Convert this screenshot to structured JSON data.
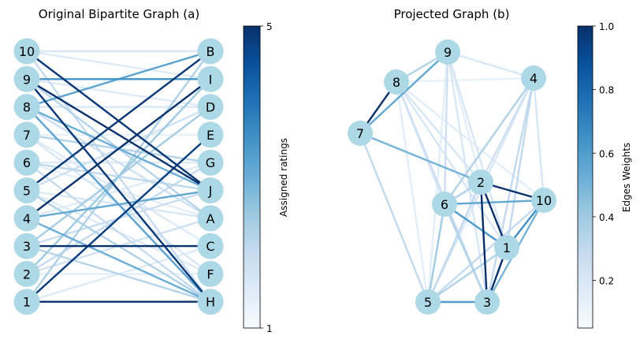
{
  "panel_a": {
    "title": "Original Bipartite Graph (a)",
    "left_nodes": [
      "10",
      "9",
      "8",
      "7",
      "6",
      "5",
      "4",
      "3",
      "2",
      "1"
    ],
    "right_nodes": [
      "B",
      "I",
      "D",
      "E",
      "G",
      "J",
      "A",
      "C",
      "F",
      "H"
    ],
    "colorbar": {
      "label": "Assigned ratings",
      "min": 1,
      "max": 5,
      "ticks": [
        "1",
        "5"
      ]
    }
  },
  "panel_b": {
    "title": "Projected Graph (b)",
    "nodes": [
      "9",
      "4",
      "8",
      "7",
      "2",
      "10",
      "6",
      "1",
      "5",
      "3"
    ],
    "colorbar": {
      "label": "Edges Weights",
      "min": 0.05,
      "max": 1.0,
      "ticks": [
        "0.2",
        "0.4",
        "0.6",
        "0.8",
        "1.0"
      ]
    }
  },
  "colors": {
    "node_fill": "#add8e6",
    "colormap": [
      "#f7fbff",
      "#deebf7",
      "#c6dbef",
      "#9ecae1",
      "#6baed6",
      "#4292c6",
      "#2171b5",
      "#08519c",
      "#08306b"
    ]
  },
  "chart_data": [
    {
      "type": "bipartite-graph",
      "title": "Original Bipartite Graph (a)",
      "edge_value_label": "Assigned ratings",
      "value_range": [
        1,
        5
      ],
      "edges": [
        {
          "source": "10",
          "target": "B",
          "value": 1.6
        },
        {
          "source": "10",
          "target": "I",
          "value": 1.5
        },
        {
          "source": "10",
          "target": "J",
          "value": 4.9
        },
        {
          "source": "10",
          "target": "H",
          "value": 2.0
        },
        {
          "source": "9",
          "target": "I",
          "value": 3.5
        },
        {
          "source": "9",
          "target": "J",
          "value": 5.0
        },
        {
          "source": "9",
          "target": "H",
          "value": 4.9
        },
        {
          "source": "9",
          "target": "D",
          "value": 1.5
        },
        {
          "source": "9",
          "target": "A",
          "value": 2.2
        },
        {
          "source": "8",
          "target": "B",
          "value": 3.2
        },
        {
          "source": "8",
          "target": "D",
          "value": 1.6
        },
        {
          "source": "8",
          "target": "J",
          "value": 3.0
        },
        {
          "source": "8",
          "target": "H",
          "value": 3.2
        },
        {
          "source": "8",
          "target": "A",
          "value": 1.8
        },
        {
          "source": "7",
          "target": "E",
          "value": 1.3
        },
        {
          "source": "7",
          "target": "G",
          "value": 2.2
        },
        {
          "source": "7",
          "target": "C",
          "value": 1.5
        },
        {
          "source": "7",
          "target": "F",
          "value": 1.6
        },
        {
          "source": "6",
          "target": "G",
          "value": 1.5
        },
        {
          "source": "6",
          "target": "J",
          "value": 2.1
        },
        {
          "source": "6",
          "target": "A",
          "value": 1.4
        },
        {
          "source": "6",
          "target": "H",
          "value": 2.0
        },
        {
          "source": "5",
          "target": "B",
          "value": 4.9
        },
        {
          "source": "5",
          "target": "D",
          "value": 1.8
        },
        {
          "source": "5",
          "target": "A",
          "value": 1.6
        },
        {
          "source": "5",
          "target": "F",
          "value": 1.5
        },
        {
          "source": "5",
          "target": "H",
          "value": 2.3
        },
        {
          "source": "4",
          "target": "I",
          "value": 5.0
        },
        {
          "source": "4",
          "target": "J",
          "value": 3.1
        },
        {
          "source": "4",
          "target": "G",
          "value": 1.5
        },
        {
          "source": "4",
          "target": "H",
          "value": 3.0
        },
        {
          "source": "3",
          "target": "C",
          "value": 5.0
        },
        {
          "source": "3",
          "target": "D",
          "value": 2.4
        },
        {
          "source": "3",
          "target": "J",
          "value": 1.9
        },
        {
          "source": "3",
          "target": "H",
          "value": 2.2
        },
        {
          "source": "2",
          "target": "I",
          "value": 2.5
        },
        {
          "source": "2",
          "target": "A",
          "value": 1.8
        },
        {
          "source": "2",
          "target": "F",
          "value": 1.4
        },
        {
          "source": "2",
          "target": "G",
          "value": 2.0
        },
        {
          "source": "1",
          "target": "H",
          "value": 5.0
        },
        {
          "source": "1",
          "target": "E",
          "value": 4.8
        },
        {
          "source": "1",
          "target": "C",
          "value": 1.5
        },
        {
          "source": "1",
          "target": "B",
          "value": 2.3
        }
      ]
    },
    {
      "type": "network-graph",
      "title": "Projected Graph (b)",
      "edge_value_label": "Edges Weights",
      "value_range": [
        0.05,
        1.0
      ],
      "edges": [
        {
          "source": "8",
          "target": "7",
          "value": 1.0
        },
        {
          "source": "9",
          "target": "7",
          "value": 0.55
        },
        {
          "source": "9",
          "target": "8",
          "value": 0.35
        },
        {
          "source": "9",
          "target": "4",
          "value": 0.2
        },
        {
          "source": "9",
          "target": "6",
          "value": 0.25
        },
        {
          "source": "9",
          "target": "2",
          "value": 0.15
        },
        {
          "source": "9",
          "target": "1",
          "value": 0.2
        },
        {
          "source": "9",
          "target": "3",
          "value": 0.2
        },
        {
          "source": "9",
          "target": "5",
          "value": 0.15
        },
        {
          "source": "8",
          "target": "4",
          "value": 0.12
        },
        {
          "source": "8",
          "target": "6",
          "value": 0.2
        },
        {
          "source": "8",
          "target": "2",
          "value": 0.2
        },
        {
          "source": "8",
          "target": "10",
          "value": 0.15
        },
        {
          "source": "8",
          "target": "1",
          "value": 0.2
        },
        {
          "source": "8",
          "target": "3",
          "value": 0.25
        },
        {
          "source": "8",
          "target": "5",
          "value": 0.15
        },
        {
          "source": "7",
          "target": "2",
          "value": 0.5
        },
        {
          "source": "7",
          "target": "5",
          "value": 0.3
        },
        {
          "source": "4",
          "target": "6",
          "value": 0.35
        },
        {
          "source": "4",
          "target": "2",
          "value": 0.25
        },
        {
          "source": "4",
          "target": "10",
          "value": 0.2
        },
        {
          "source": "4",
          "target": "1",
          "value": 0.3
        },
        {
          "source": "4",
          "target": "3",
          "value": 0.3
        },
        {
          "source": "4",
          "target": "5",
          "value": 0.2
        },
        {
          "source": "2",
          "target": "10",
          "value": 1.0
        },
        {
          "source": "2",
          "target": "1",
          "value": 1.0
        },
        {
          "source": "2",
          "target": "3",
          "value": 1.0
        },
        {
          "source": "2",
          "target": "6",
          "value": 0.35
        },
        {
          "source": "2",
          "target": "5",
          "value": 0.3
        },
        {
          "source": "6",
          "target": "10",
          "value": 0.55
        },
        {
          "source": "6",
          "target": "1",
          "value": 0.6
        },
        {
          "source": "6",
          "target": "3",
          "value": 0.35
        },
        {
          "source": "6",
          "target": "5",
          "value": 0.4
        },
        {
          "source": "10",
          "target": "1",
          "value": 0.65
        },
        {
          "source": "10",
          "target": "3",
          "value": 0.5
        },
        {
          "source": "10",
          "target": "5",
          "value": 0.3
        },
        {
          "source": "1",
          "target": "3",
          "value": 1.0
        },
        {
          "source": "1",
          "target": "5",
          "value": 0.35
        },
        {
          "source": "3",
          "target": "5",
          "value": 0.6
        }
      ]
    }
  ]
}
